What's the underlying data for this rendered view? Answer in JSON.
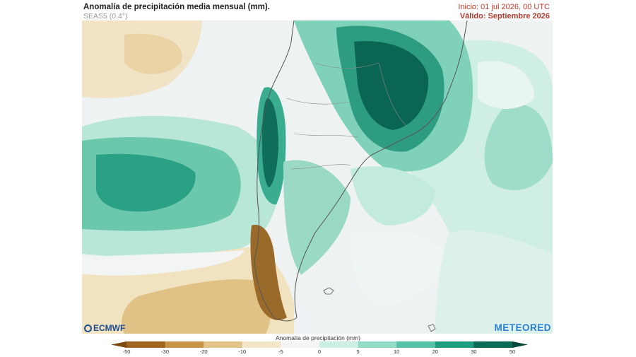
{
  "header": {
    "title": "Anomalía de precipitación media mensual (mm).",
    "subtitle": "SEAS5 (0.4°)",
    "init": "Inicio: 01 jul 2026, 00 UTC",
    "valid": "Válido: Septiembre 2026"
  },
  "logos": {
    "left": "ECMWF",
    "right": "METEORED"
  },
  "legend": {
    "title": "Anomalía de precipitación (mm)",
    "ticks": [
      "-50",
      "-30",
      "-20",
      "-10",
      "-5",
      "0",
      "5",
      "10",
      "20",
      "30",
      "50"
    ],
    "colors": [
      "#7a4a10",
      "#a0641f",
      "#c79344",
      "#e2c48a",
      "#f3e6c8",
      "#f4f4f4",
      "#cdeee4",
      "#92dcc7",
      "#56c2a6",
      "#1e9c80",
      "#0a6b57",
      "#07483a"
    ]
  },
  "map": {
    "region": "Sudamérica",
    "variable": "precipitation anomaly",
    "features": [
      "wet anomaly over southern Brazil",
      "wet anomaly over central Chile",
      "dry anomaly over southern Patagonia",
      "dry anomaly in southwest Pacific"
    ]
  }
}
